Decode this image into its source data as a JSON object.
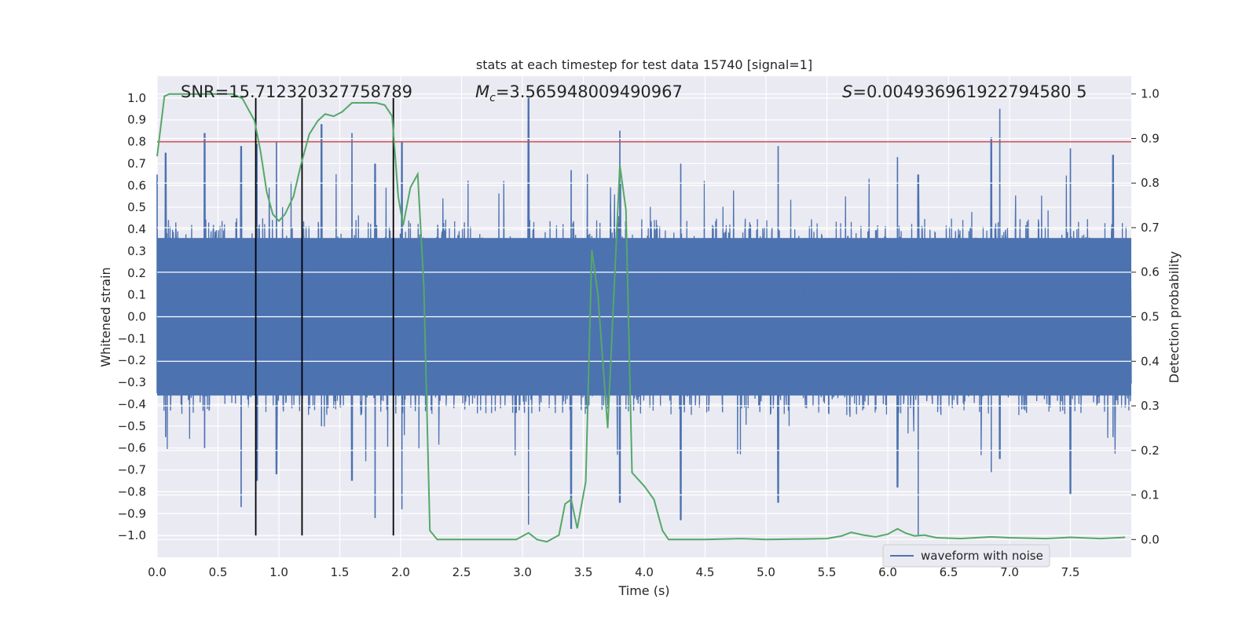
{
  "chart_data": {
    "type": "line",
    "title": "stats at each timestep for test data 15740 [signal=1]",
    "xlabel": "Time (s)",
    "ylabel": "Whitened strain",
    "y2label": "Detection probability",
    "xlim": [
      0.0,
      8.0
    ],
    "ylim": [
      -1.1,
      1.1
    ],
    "y2lim": [
      -0.04,
      1.04
    ],
    "xticks": [
      "0.0",
      "0.5",
      "1.0",
      "1.5",
      "2.0",
      "2.5",
      "3.0",
      "3.5",
      "4.0",
      "4.5",
      "5.0",
      "5.5",
      "6.0",
      "6.5",
      "7.0",
      "7.5"
    ],
    "yticks": [
      "1.0",
      "0.9",
      "0.8",
      "0.7",
      "0.6",
      "0.5",
      "0.4",
      "0.3",
      "0.2",
      "0.1",
      "0.0",
      "-0.1",
      "-0.2",
      "-0.3",
      "-0.4",
      "-0.5",
      "-0.6",
      "-0.7",
      "-0.8",
      "-0.9",
      "-1.0"
    ],
    "y2ticks": [
      "1.0",
      "0.9",
      "0.8",
      "0.7",
      "0.6",
      "0.5",
      "0.4",
      "0.3",
      "0.2",
      "0.1",
      "0.0"
    ],
    "grid": true,
    "legend_position": "bottom-right",
    "annotations": {
      "snr": "SNR=15.712320327758789",
      "mc_symbol": "M",
      "mc_sub": "c",
      "mc_value": "=3.565948009490967",
      "s_symbol": "S",
      "s_value": "=0.004936961922794580 5"
    },
    "vertical_lines_x": [
      0.81,
      1.19,
      1.94
    ],
    "threshold_y": 0.8,
    "series": [
      {
        "name": "waveform with noise",
        "axis": "left",
        "color": "#4c72b0",
        "kind": "noisy waveform",
        "band_peaks": [
          [
            0.0,
            0.65,
            -0.35
          ],
          [
            0.07,
            0.75,
            -0.55
          ],
          [
            0.39,
            0.84,
            -0.6
          ],
          [
            0.69,
            0.78,
            -0.87
          ],
          [
            0.82,
            0.79,
            -0.75
          ],
          [
            0.98,
            0.8,
            -0.72
          ],
          [
            1.35,
            0.88,
            -0.5
          ],
          [
            1.6,
            0.84,
            -0.75
          ],
          [
            1.79,
            0.7,
            -0.92
          ],
          [
            2.01,
            0.8,
            -0.88
          ],
          [
            3.05,
            1.0,
            -0.95
          ],
          [
            3.4,
            0.67,
            -0.97
          ],
          [
            3.8,
            0.85,
            -0.85
          ],
          [
            4.3,
            0.7,
            -0.93
          ],
          [
            5.1,
            0.78,
            -0.85
          ],
          [
            6.08,
            0.73,
            -0.78
          ],
          [
            6.25,
            0.65,
            -1.0
          ],
          [
            6.85,
            0.82,
            -0.71
          ],
          [
            6.92,
            0.95,
            -0.65
          ],
          [
            7.5,
            0.77,
            -0.81
          ],
          [
            7.85,
            0.74,
            -0.55
          ]
        ]
      },
      {
        "name": "",
        "axis": "right",
        "color": "#55a868",
        "kind": "detection probability",
        "points": [
          [
            0.0,
            0.86
          ],
          [
            0.06,
            0.995
          ],
          [
            0.1,
            1.0
          ],
          [
            0.3,
            1.0
          ],
          [
            0.55,
            1.0
          ],
          [
            0.62,
            1.0
          ],
          [
            0.7,
            0.99
          ],
          [
            0.8,
            0.94
          ],
          [
            0.85,
            0.87
          ],
          [
            0.9,
            0.78
          ],
          [
            0.95,
            0.73
          ],
          [
            1.0,
            0.715
          ],
          [
            1.05,
            0.73
          ],
          [
            1.12,
            0.77
          ],
          [
            1.18,
            0.84
          ],
          [
            1.25,
            0.91
          ],
          [
            1.32,
            0.94
          ],
          [
            1.38,
            0.955
          ],
          [
            1.45,
            0.95
          ],
          [
            1.52,
            0.96
          ],
          [
            1.6,
            0.98
          ],
          [
            1.7,
            0.98
          ],
          [
            1.8,
            0.98
          ],
          [
            1.87,
            0.975
          ],
          [
            1.93,
            0.95
          ],
          [
            1.98,
            0.77
          ],
          [
            2.02,
            0.705
          ],
          [
            2.08,
            0.79
          ],
          [
            2.14,
            0.82
          ],
          [
            2.19,
            0.57
          ],
          [
            2.24,
            0.02
          ],
          [
            2.3,
            0.0
          ],
          [
            2.6,
            0.0
          ],
          [
            2.95,
            0.0
          ],
          [
            3.05,
            0.015
          ],
          [
            3.12,
            0.0
          ],
          [
            3.2,
            -0.005
          ],
          [
            3.3,
            0.01
          ],
          [
            3.35,
            0.08
          ],
          [
            3.4,
            0.09
          ],
          [
            3.45,
            0.025
          ],
          [
            3.52,
            0.13
          ],
          [
            3.57,
            0.65
          ],
          [
            3.62,
            0.55
          ],
          [
            3.7,
            0.25
          ],
          [
            3.8,
            0.84
          ],
          [
            3.85,
            0.74
          ],
          [
            3.9,
            0.15
          ],
          [
            4.0,
            0.12
          ],
          [
            4.08,
            0.09
          ],
          [
            4.15,
            0.02
          ],
          [
            4.2,
            0.0
          ],
          [
            4.5,
            0.0
          ],
          [
            4.8,
            0.002
          ],
          [
            5.0,
            0.0
          ],
          [
            5.5,
            0.002
          ],
          [
            5.62,
            0.008
          ],
          [
            5.7,
            0.016
          ],
          [
            5.8,
            0.01
          ],
          [
            5.9,
            0.006
          ],
          [
            6.0,
            0.012
          ],
          [
            6.08,
            0.024
          ],
          [
            6.15,
            0.014
          ],
          [
            6.22,
            0.008
          ],
          [
            6.3,
            0.01
          ],
          [
            6.4,
            0.004
          ],
          [
            6.6,
            0.002
          ],
          [
            6.85,
            0.006
          ],
          [
            7.0,
            0.004
          ],
          [
            7.3,
            0.002
          ],
          [
            7.5,
            0.005
          ],
          [
            7.75,
            0.002
          ],
          [
            7.95,
            0.005
          ]
        ]
      }
    ]
  }
}
